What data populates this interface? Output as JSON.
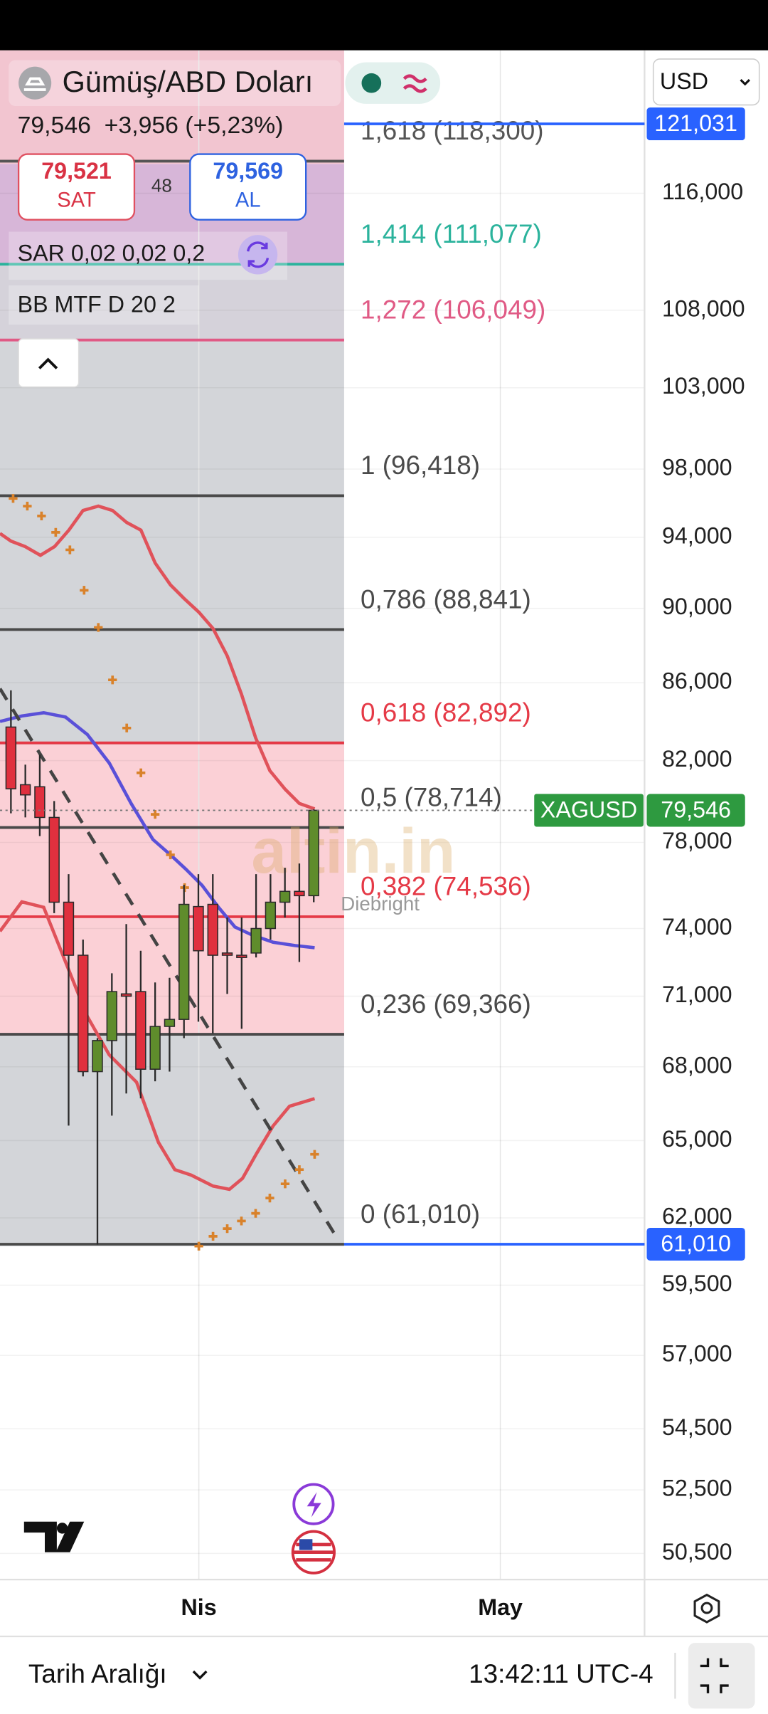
{
  "header": {
    "title": "Gümüş/ABD Doları",
    "quote": "79,546  +3,956 (+5,23%)",
    "sell_price": "79,521",
    "sell_label": "SAT",
    "spread": "48",
    "buy_price": "79,569",
    "buy_label": "AL",
    "indicators": [
      "SAR 0,02 0,02 0,2",
      "BB MTF D 20 2"
    ],
    "currency": "USD"
  },
  "chart_data": {
    "type": "candlestick",
    "log_scale": true,
    "grid": true,
    "ylim": [
      49700,
      126600
    ],
    "yticks": [
      {
        "value": 116000,
        "label": "116,000"
      },
      {
        "value": 108000,
        "label": "108,000"
      },
      {
        "value": 103000,
        "label": "103,000"
      },
      {
        "value": 98000,
        "label": "98,000"
      },
      {
        "value": 94000,
        "label": "94,000"
      },
      {
        "value": 90000,
        "label": "90,000"
      },
      {
        "value": 86000,
        "label": "86,000"
      },
      {
        "value": 82000,
        "label": "82,000"
      },
      {
        "value": 78000,
        "label": "78,000"
      },
      {
        "value": 74000,
        "label": "74,000"
      },
      {
        "value": 71000,
        "label": "71,000"
      },
      {
        "value": 68000,
        "label": "68,000"
      },
      {
        "value": 65000,
        "label": "65,000"
      },
      {
        "value": 62000,
        "label": "62,000"
      },
      {
        "value": 59500,
        "label": "59,500"
      },
      {
        "value": 57000,
        "label": "57,000"
      },
      {
        "value": 54500,
        "label": "54,500"
      },
      {
        "value": 52500,
        "label": "52,500"
      },
      {
        "value": 50500,
        "label": "50,500"
      }
    ],
    "x_labels": [
      "Nis",
      "May"
    ],
    "up_color": "#5f8c2c",
    "down_color": "#e0303e",
    "open": [
      83700,
      80800,
      80700,
      79200,
      75200,
      72800,
      67800,
      69100,
      71100,
      71200,
      67900,
      69700,
      70000,
      75000,
      75100,
      72900,
      72800,
      72900,
      74000,
      75200,
      75700,
      75500
    ],
    "high": [
      85600,
      81800,
      82300,
      80000,
      76500,
      73500,
      69200,
      72000,
      74200,
      73000,
      71600,
      71800,
      76000,
      76500,
      76500,
      74500,
      74500,
      76500,
      76500,
      76800,
      77000,
      79600
    ],
    "low": [
      79400,
      79200,
      78300,
      74700,
      65600,
      67600,
      61000,
      66000,
      66900,
      66700,
      67400,
      67800,
      69200,
      69900,
      69400,
      71100,
      69600,
      72700,
      73500,
      74500,
      72500,
      75200
    ],
    "close": [
      80600,
      80300,
      79200,
      75200,
      72800,
      67800,
      69100,
      71200,
      71000,
      67900,
      69700,
      70000,
      75100,
      73000,
      72800,
      72800,
      72700,
      74000,
      75200,
      75700,
      75500,
      79546
    ],
    "levels": [
      {
        "value": 118300,
        "label": "1,618 (118,300)",
        "color": "#555555"
      },
      {
        "value": 111077,
        "label": "1,414 (111,077)",
        "color": "#2bb39c"
      },
      {
        "value": 106049,
        "label": "1,272 (106,049)",
        "color": "#e05a85"
      },
      {
        "value": 96418,
        "label": "1 (96,418)",
        "color": "#4a4a4a"
      },
      {
        "value": 88841,
        "label": "0,786 (88,841)",
        "color": "#4a4a4a"
      },
      {
        "value": 82892,
        "label": "0,618 (82,892)",
        "color": "#e53946"
      },
      {
        "value": 78714,
        "label": "0,5 (78,714)",
        "color": "#4a4a4a"
      },
      {
        "value": 74536,
        "label": "0,382 (74,536)",
        "color": "#e53946"
      },
      {
        "value": 69366,
        "label": "0,236 (69,366)",
        "color": "#4a4a4a"
      },
      {
        "value": 61010,
        "label": "0 (61,010)",
        "color": "#4a4a4a"
      }
    ],
    "price_tags": [
      {
        "value": 121031,
        "label": "121,031",
        "color": "#2962ff"
      },
      {
        "value": 61010,
        "label": "61,010",
        "color": "#2962ff"
      },
      {
        "value": 79546,
        "label": "79,546",
        "color": "#2e9a40",
        "symbol": "XAGUSD"
      }
    ],
    "watermark": "altin.in",
    "watermark_note": "Diebright"
  },
  "footer": {
    "range": "Tarih Aralığı",
    "time": "13:42:11 UTC-4"
  }
}
